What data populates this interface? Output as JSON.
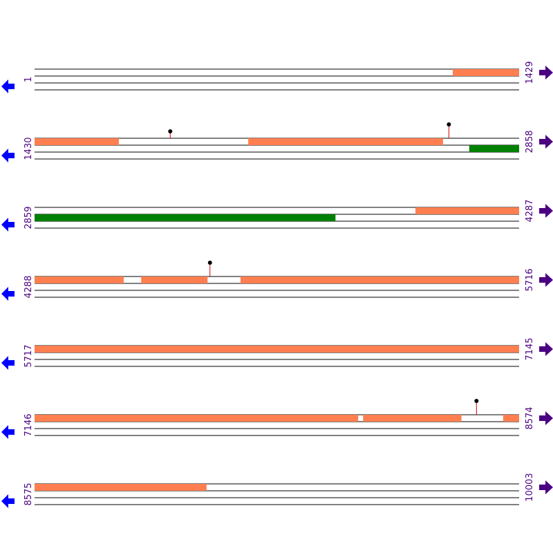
{
  "colors": {
    "feature_orange": "#ff7f50",
    "feature_green": "#008000",
    "strand_line": "#000000",
    "site_stem": "#d00000",
    "site_head": "#000000",
    "left_arrow": "#0000ff",
    "right_arrow": "#4b0082",
    "coord_text": "#4b0082"
  },
  "icons": {
    "left": "reverse-strand-arrow-icon",
    "right": "forward-strand-arrow-icon"
  },
  "map": {
    "rows": [
      {
        "start": "1",
        "end": "1429",
        "features": [
          {
            "track": 0,
            "from": 0.863,
            "to": 1.0,
            "color": "orange"
          }
        ],
        "sites": []
      },
      {
        "start": "1430",
        "end": "2858",
        "features": [
          {
            "track": 0,
            "from": 0.0,
            "to": 0.174,
            "color": "orange"
          },
          {
            "track": 0,
            "from": 0.441,
            "to": 0.843,
            "color": "orange"
          },
          {
            "track": 1,
            "from": 0.897,
            "to": 1.0,
            "color": "green"
          }
        ],
        "sites": [
          {
            "pos": 0.28,
            "height": 10
          },
          {
            "pos": 0.855,
            "height": 20
          }
        ]
      },
      {
        "start": "2859",
        "end": "4287",
        "features": [
          {
            "track": 0,
            "from": 0.786,
            "to": 1.0,
            "color": "orange"
          },
          {
            "track": 1,
            "from": 0.0,
            "to": 0.621,
            "color": "green"
          }
        ],
        "sites": []
      },
      {
        "start": "4288",
        "end": "5716",
        "features": [
          {
            "track": 0,
            "from": 0.0,
            "to": 0.184,
            "color": "orange"
          },
          {
            "track": 0,
            "from": 0.22,
            "to": 0.357,
            "color": "orange"
          },
          {
            "track": 0,
            "from": 0.425,
            "to": 1.0,
            "color": "orange"
          }
        ],
        "sites": [
          {
            "pos": 0.362,
            "height": 20
          }
        ]
      },
      {
        "start": "5717",
        "end": "7145",
        "features": [
          {
            "track": 0,
            "from": 0.0,
            "to": 1.0,
            "color": "orange"
          }
        ],
        "sites": []
      },
      {
        "start": "7146",
        "end": "8574",
        "features": [
          {
            "track": 0,
            "from": 0.0,
            "to": 0.668,
            "color": "orange"
          },
          {
            "track": 0,
            "from": 0.678,
            "to": 0.881,
            "color": "orange"
          },
          {
            "track": 0,
            "from": 0.967,
            "to": 1.0,
            "color": "orange"
          }
        ],
        "sites": [
          {
            "pos": 0.912,
            "height": 20
          }
        ]
      },
      {
        "start": "8575",
        "end": "10003",
        "features": [
          {
            "track": 0,
            "from": 0.0,
            "to": 0.355,
            "color": "orange"
          }
        ],
        "sites": []
      }
    ]
  }
}
